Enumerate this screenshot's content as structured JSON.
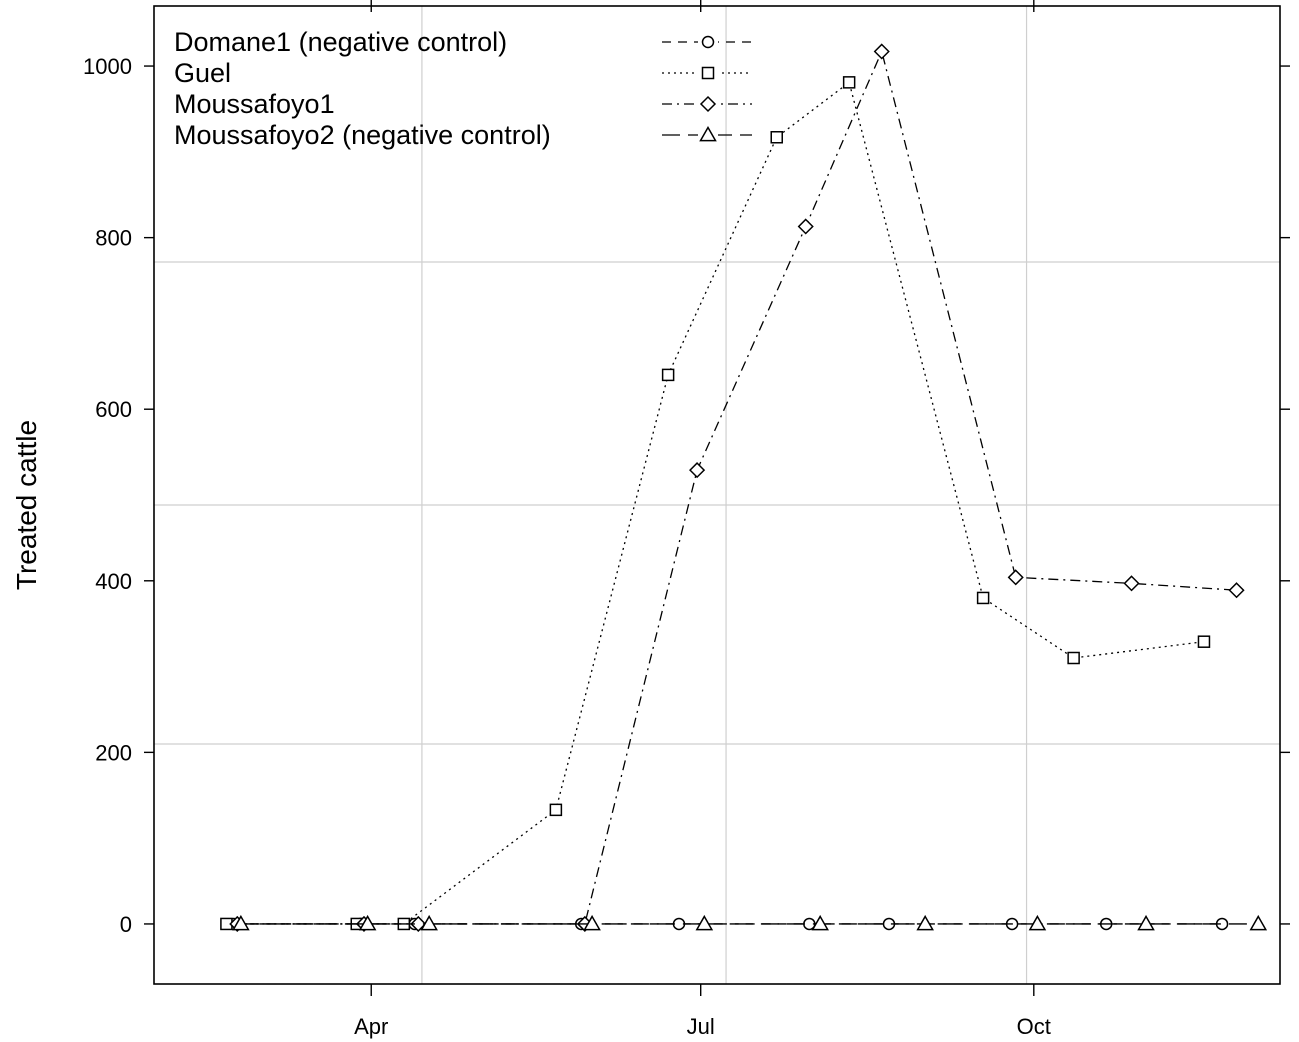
{
  "chart_data": {
    "type": "line",
    "title": "",
    "xlabel": "",
    "ylabel": "Treated cattle",
    "ylim": [
      -70,
      1070
    ],
    "yticks": [
      0,
      200,
      400,
      600,
      800,
      1000
    ],
    "xlim": [
      "2017-01-31",
      "2017-12-08"
    ],
    "xticks": [
      {
        "date": "2017-04-01",
        "label": "Apr"
      },
      {
        "date": "2017-07-01",
        "label": "Jul"
      },
      {
        "date": "2017-10-01",
        "label": "Oct"
      }
    ],
    "grid": true,
    "legend_position": "top-left",
    "series": [
      {
        "name": "Domane1 (negative control)",
        "marker": "circle",
        "dash": "dashed",
        "points": [
          [
            "2017-02-22",
            0
          ],
          [
            "2017-03-29",
            0
          ],
          [
            "2017-04-13",
            0
          ],
          [
            "2017-05-29",
            0
          ],
          [
            "2017-06-25",
            0
          ],
          [
            "2017-07-31",
            0
          ],
          [
            "2017-08-22",
            0
          ],
          [
            "2017-09-25",
            0
          ],
          [
            "2017-10-21",
            0
          ],
          [
            "2017-11-22",
            0
          ]
        ]
      },
      {
        "name": "Guel",
        "marker": "square",
        "dash": "dotted",
        "points": [
          [
            "2017-02-20",
            0
          ],
          [
            "2017-03-28",
            0
          ],
          [
            "2017-04-10",
            0
          ],
          [
            "2017-05-22",
            133
          ],
          [
            "2017-06-22",
            640
          ],
          [
            "2017-07-22",
            917
          ],
          [
            "2017-08-11",
            981
          ],
          [
            "2017-09-17",
            380
          ],
          [
            "2017-10-12",
            310
          ],
          [
            "2017-11-17",
            329
          ]
        ]
      },
      {
        "name": "Moussafoyo1",
        "marker": "diamond",
        "dash": "dotdash",
        "points": [
          [
            "2017-02-23",
            0
          ],
          [
            "2017-03-30",
            0
          ],
          [
            "2017-04-14",
            0
          ],
          [
            "2017-05-30",
            0
          ],
          [
            "2017-06-30",
            529
          ],
          [
            "2017-07-30",
            813
          ],
          [
            "2017-08-20",
            1017
          ],
          [
            "2017-09-26",
            404
          ],
          [
            "2017-10-28",
            397
          ],
          [
            "2017-11-26",
            389
          ]
        ]
      },
      {
        "name": "Moussafoyo2 (negative control)",
        "marker": "triangle",
        "dash": "longdash",
        "points": [
          [
            "2017-02-24",
            0
          ],
          [
            "2017-03-31",
            0
          ],
          [
            "2017-04-17",
            0
          ],
          [
            "2017-06-01",
            0
          ],
          [
            "2017-07-02",
            0
          ],
          [
            "2017-08-03",
            0
          ],
          [
            "2017-09-01",
            0
          ],
          [
            "2017-10-02",
            0
          ],
          [
            "2017-11-01",
            0
          ],
          [
            "2017-12-02",
            0
          ]
        ]
      }
    ]
  }
}
